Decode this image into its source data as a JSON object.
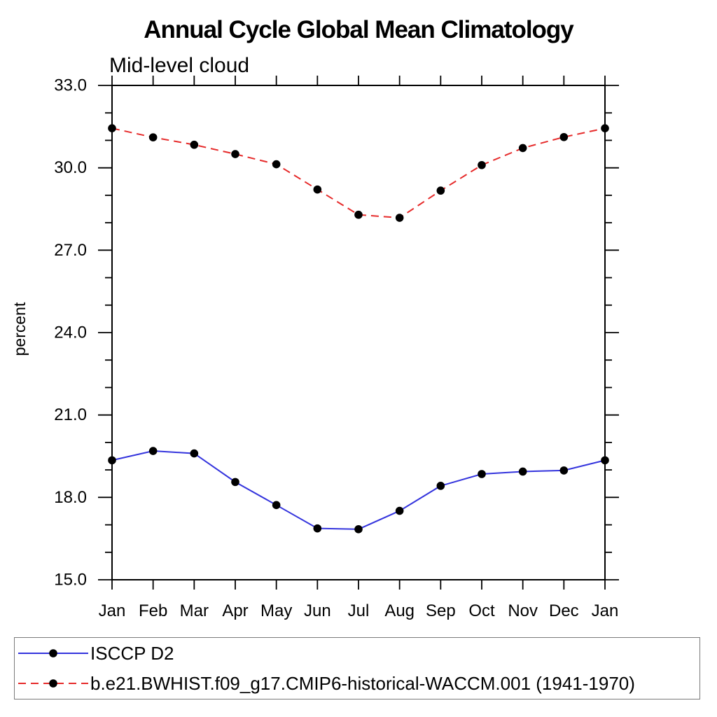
{
  "chart_data": {
    "type": "line",
    "title": "Annual Cycle Global Mean Climatology",
    "subtitle": "Mid-level cloud",
    "ylabel": "percent",
    "x_categories": [
      "Jan",
      "Feb",
      "Mar",
      "Apr",
      "May",
      "Jun",
      "Jul",
      "Aug",
      "Sep",
      "Oct",
      "Nov",
      "Dec",
      "Jan"
    ],
    "ylim": [
      15.0,
      33.0
    ],
    "ytick_major_values": [
      15,
      18,
      21,
      24,
      27,
      30,
      33
    ],
    "ytick_labels": [
      "15.0",
      "18.0",
      "21.0",
      "24.0",
      "27.0",
      "30.0",
      "33.0"
    ],
    "ytick_minor_step": 1,
    "grid": false,
    "legend_position": "bottom-left-box",
    "marker": {
      "shape": "circle",
      "color": "#000000",
      "radius": 5.8
    },
    "axis_color": "#000000",
    "series": [
      {
        "name": "ISCCP D2",
        "color": "#3434dd",
        "style": "solid",
        "values": [
          19.35,
          19.69,
          19.6,
          18.56,
          17.72,
          16.87,
          16.84,
          17.51,
          18.42,
          18.85,
          18.94,
          18.98,
          19.35
        ]
      },
      {
        "name": "b.e21.BWHIST.f09_g17.CMIP6-historical-WACCM.001 (1941-1970)",
        "color": "#e62b2b",
        "style": "dashed",
        "values": [
          31.44,
          31.11,
          30.84,
          30.5,
          30.13,
          29.21,
          28.29,
          28.18,
          29.17,
          30.1,
          30.72,
          31.12,
          31.44
        ]
      }
    ]
  }
}
